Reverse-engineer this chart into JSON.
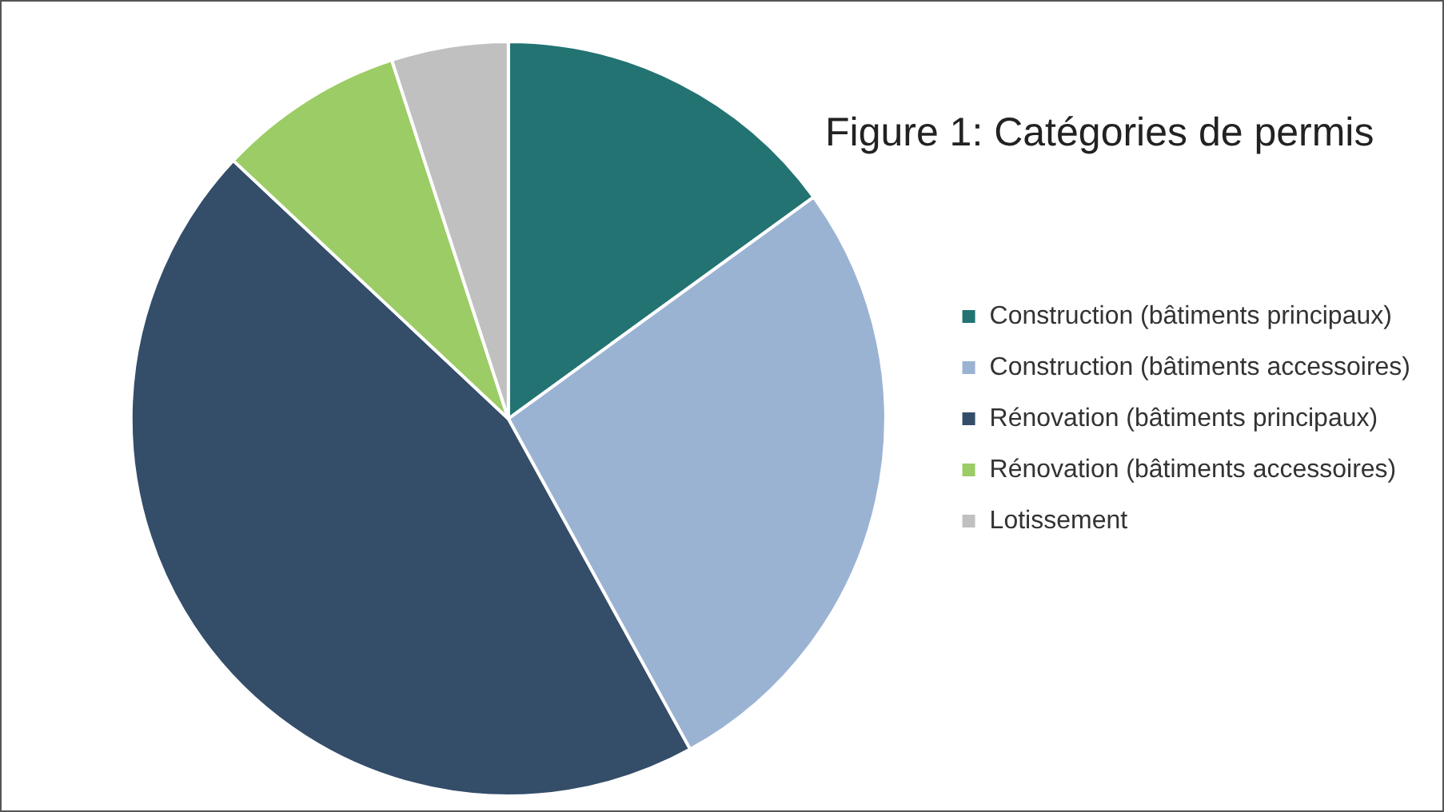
{
  "chart_data": {
    "type": "pie",
    "title": "Figure 1: Catégories de permis",
    "categories": [
      "Construction (bâtiments principaux)",
      "Construction (bâtiments accessoires)",
      "Rénovation (bâtiments principaux)",
      "Rénovation (bâtiments accessoires)",
      "Lotissement"
    ],
    "values": [
      15,
      27,
      45,
      8,
      5
    ],
    "colors": [
      "#237373",
      "#9bb3d3",
      "#344d69",
      "#9ccc65",
      "#c0c0c0"
    ],
    "legend": "right"
  }
}
